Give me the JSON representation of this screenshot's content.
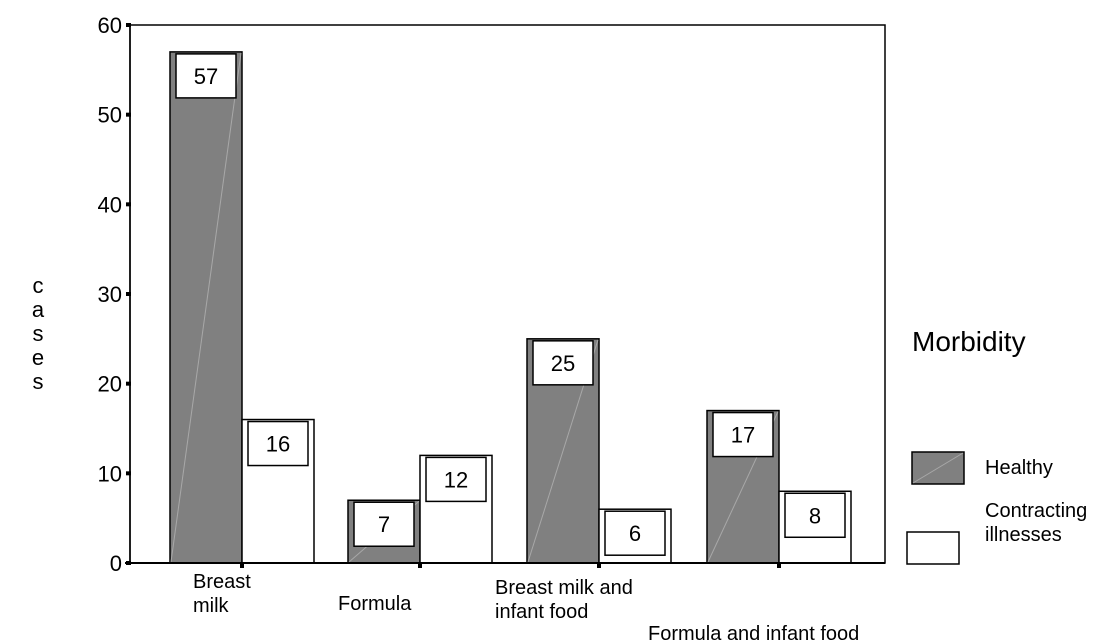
{
  "chart_data": {
    "type": "bar",
    "categories": [
      [
        "Breast",
        "milk"
      ],
      [
        "Formula"
      ],
      [
        "Breast milk and",
        "infant food"
      ],
      [
        "Formula and infant food"
      ]
    ],
    "series": [
      {
        "name": "Healthy",
        "values": [
          57,
          7,
          25,
          17
        ],
        "color": "#808080"
      },
      {
        "name": "Contracting illnesses",
        "values": [
          16,
          12,
          6,
          8
        ],
        "color": "#ffffff"
      }
    ],
    "ylabel": "cases",
    "ylim": [
      0,
      60
    ],
    "yticks": [
      0,
      10,
      20,
      30,
      40,
      50,
      60
    ],
    "grid": false,
    "legend": {
      "title": "Morbidity",
      "placement": "right",
      "entries": [
        {
          "lines": [
            "Healthy"
          ]
        },
        {
          "lines": [
            "Contracting",
            "illnesses"
          ]
        }
      ]
    }
  }
}
